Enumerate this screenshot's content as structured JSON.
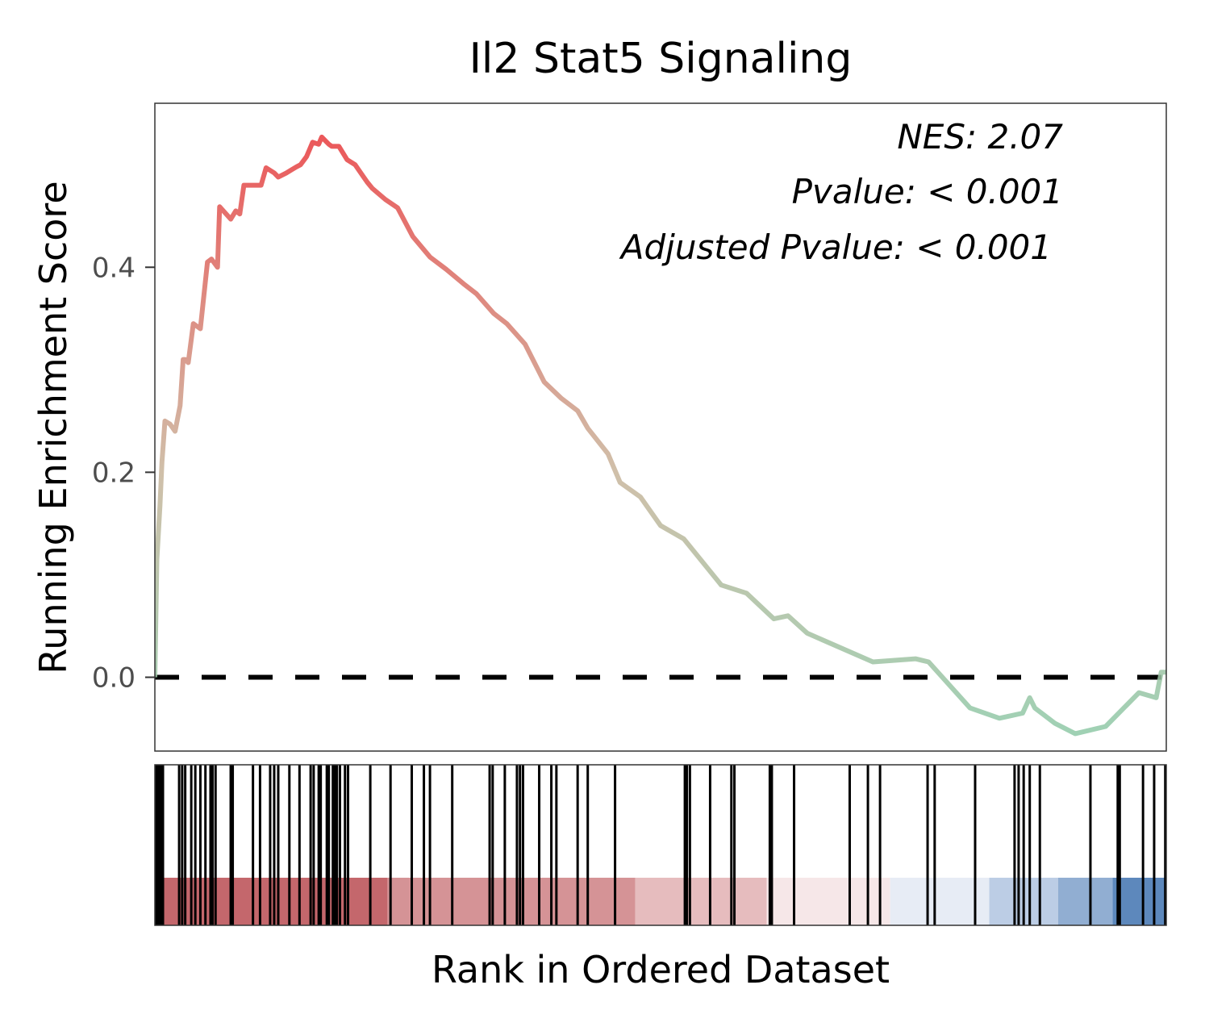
{
  "chart_data": {
    "type": "line",
    "title": "Il2 Stat5 Signaling",
    "xlabel": "Rank in Ordered Dataset",
    "ylabel": "Running Enrichment Score",
    "ylim": [
      -0.072,
      0.56
    ],
    "y_ticks": [
      0.0,
      0.2,
      0.4
    ],
    "y_tick_labels": [
      "0.0",
      "0.2",
      "0.4"
    ],
    "x_range": [
      0,
      1000
    ],
    "grid": false,
    "reference_line": {
      "y": 0.0,
      "style": "dashed",
      "color": "#000000"
    },
    "annotations": [
      "NES: 2.07",
      "Pvalue: < 0.001",
      "Adjusted Pvalue: < 0.001"
    ],
    "colors": {
      "high": "#e8393c",
      "mid": "#c8b49a",
      "low": "#8ccaa8"
    },
    "series": [
      {
        "x": [
          0,
          2,
          5,
          7,
          10,
          15,
          20,
          25,
          28,
          30,
          33,
          38,
          45,
          52,
          56,
          62,
          64,
          75,
          80,
          84,
          88,
          105,
          110,
          118,
          122,
          130,
          135,
          140,
          144,
          150,
          156,
          162,
          165,
          172,
          175,
          182,
          190,
          198,
          205,
          210,
          215,
          228,
          240,
          255,
          272,
          288,
          305,
          318,
          335,
          348,
          366,
          385,
          402,
          418,
          428,
          448,
          460,
          480,
          500,
          523,
          560,
          585,
          612,
          626,
          645,
          710,
          752,
          765,
          806,
          835,
          858,
          865,
          870,
          890,
          910,
          940,
          973,
          990,
          995,
          1000
        ],
        "y": [
          0.0,
          0.115,
          0.167,
          0.21,
          0.25,
          0.247,
          0.24,
          0.265,
          0.31,
          0.31,
          0.307,
          0.345,
          0.34,
          0.405,
          0.408,
          0.4,
          0.459,
          0.447,
          0.455,
          0.452,
          0.48,
          0.48,
          0.497,
          0.492,
          0.488,
          0.492,
          0.495,
          0.498,
          0.5,
          0.508,
          0.522,
          0.52,
          0.527,
          0.52,
          0.518,
          0.518,
          0.505,
          0.5,
          0.49,
          0.483,
          0.477,
          0.466,
          0.458,
          0.43,
          0.41,
          0.398,
          0.384,
          0.374,
          0.355,
          0.345,
          0.325,
          0.288,
          0.272,
          0.26,
          0.243,
          0.218,
          0.19,
          0.176,
          0.148,
          0.135,
          0.09,
          0.082,
          0.057,
          0.06,
          0.043,
          0.015,
          0.018,
          0.015,
          -0.03,
          -0.04,
          -0.035,
          -0.02,
          -0.03,
          -0.045,
          -0.055,
          -0.048,
          -0.015,
          -0.02,
          0.005,
          0.005
        ]
      }
    ],
    "hit_ranks": [
      1,
      3,
      5,
      7,
      8,
      24,
      27,
      30,
      36,
      40,
      45,
      50,
      55,
      57,
      60,
      75,
      77,
      97,
      104,
      114,
      118,
      122,
      133,
      143,
      154,
      157,
      162,
      164,
      170,
      172,
      176,
      178,
      180,
      183,
      188,
      191,
      213,
      233,
      254,
      266,
      272,
      294,
      331,
      334,
      346,
      358,
      361,
      364,
      380,
      392,
      397,
      418,
      428,
      455,
      524,
      525,
      526,
      529,
      549,
      570,
      573,
      608,
      610,
      632,
      687,
      705,
      717,
      764,
      771,
      811,
      850,
      854,
      859,
      865,
      875,
      925,
      952,
      954,
      977,
      988,
      999
    ],
    "rank_bins": [
      {
        "from": 0,
        "to": 5,
        "color": "#8b1a1f"
      },
      {
        "from": 5,
        "to": 230,
        "color": "#c4676c"
      },
      {
        "from": 230,
        "to": 475,
        "color": "#d59396"
      },
      {
        "from": 475,
        "to": 605,
        "color": "#e6bcbe"
      },
      {
        "from": 605,
        "to": 727,
        "color": "#f6e7e8"
      },
      {
        "from": 727,
        "to": 825,
        "color": "#e7ecf5"
      },
      {
        "from": 825,
        "to": 893,
        "color": "#bccde5"
      },
      {
        "from": 893,
        "to": 947,
        "color": "#91aed2"
      },
      {
        "from": 947,
        "to": 1000,
        "color": "#5d88bc"
      }
    ]
  }
}
